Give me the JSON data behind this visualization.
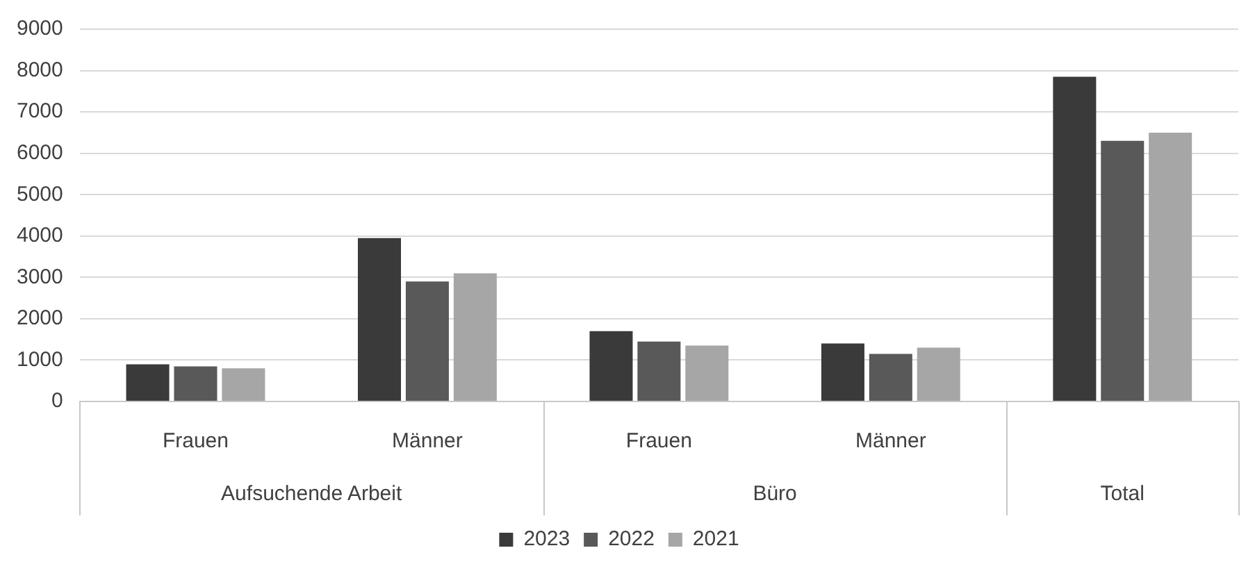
{
  "chart_data": {
    "type": "bar",
    "categories": [
      "Frauen",
      "Männer",
      "Frauen",
      "Männer",
      null
    ],
    "annotations": [
      "Aufsuchende Arbeit",
      "Büro",
      "Total"
    ],
    "series": [
      {
        "name": "2023",
        "color": "#3a3a3a",
        "values": [
          900,
          3950,
          1700,
          1400,
          7850
        ]
      },
      {
        "name": "2022",
        "color": "#595959",
        "values": [
          850,
          2900,
          1450,
          1150,
          6300
        ]
      },
      {
        "name": "2021",
        "color": "#a6a6a6",
        "values": [
          800,
          3100,
          1350,
          1300,
          6500
        ]
      }
    ],
    "ylim": [
      0,
      9000
    ],
    "yticks": [
      0,
      1000,
      2000,
      3000,
      4000,
      5000,
      6000,
      7000,
      8000,
      9000
    ],
    "grid": "y",
    "legend": "bottom"
  }
}
